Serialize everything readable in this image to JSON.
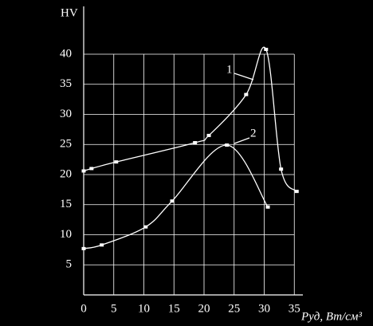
{
  "chart_data": {
    "type": "line",
    "y_label": "HV",
    "x_label": "Pуд, Вт/см³",
    "xlim": [
      0,
      36
    ],
    "ylim": [
      0,
      47
    ],
    "xticks": [
      0,
      5,
      10,
      15,
      20,
      25,
      30,
      35
    ],
    "yticks": [
      5,
      10,
      15,
      20,
      25,
      30,
      35,
      40
    ],
    "grid": true,
    "series": [
      {
        "name": "1",
        "color": "#ffffff",
        "x": [
          0,
          1.3,
          5.4,
          18.5,
          20.8,
          27,
          30.3,
          32.8,
          35.4
        ],
        "values": [
          20.6,
          21.0,
          22.1,
          25.3,
          26.5,
          33.3,
          40.8,
          20.9,
          17.2
        ]
      },
      {
        "name": "2",
        "color": "#ffffff",
        "x": [
          0,
          3,
          10.3,
          14.7,
          23.8,
          30.6
        ],
        "values": [
          7.7,
          8.3,
          11.3,
          15.6,
          24.9,
          14.6
        ]
      }
    ]
  }
}
